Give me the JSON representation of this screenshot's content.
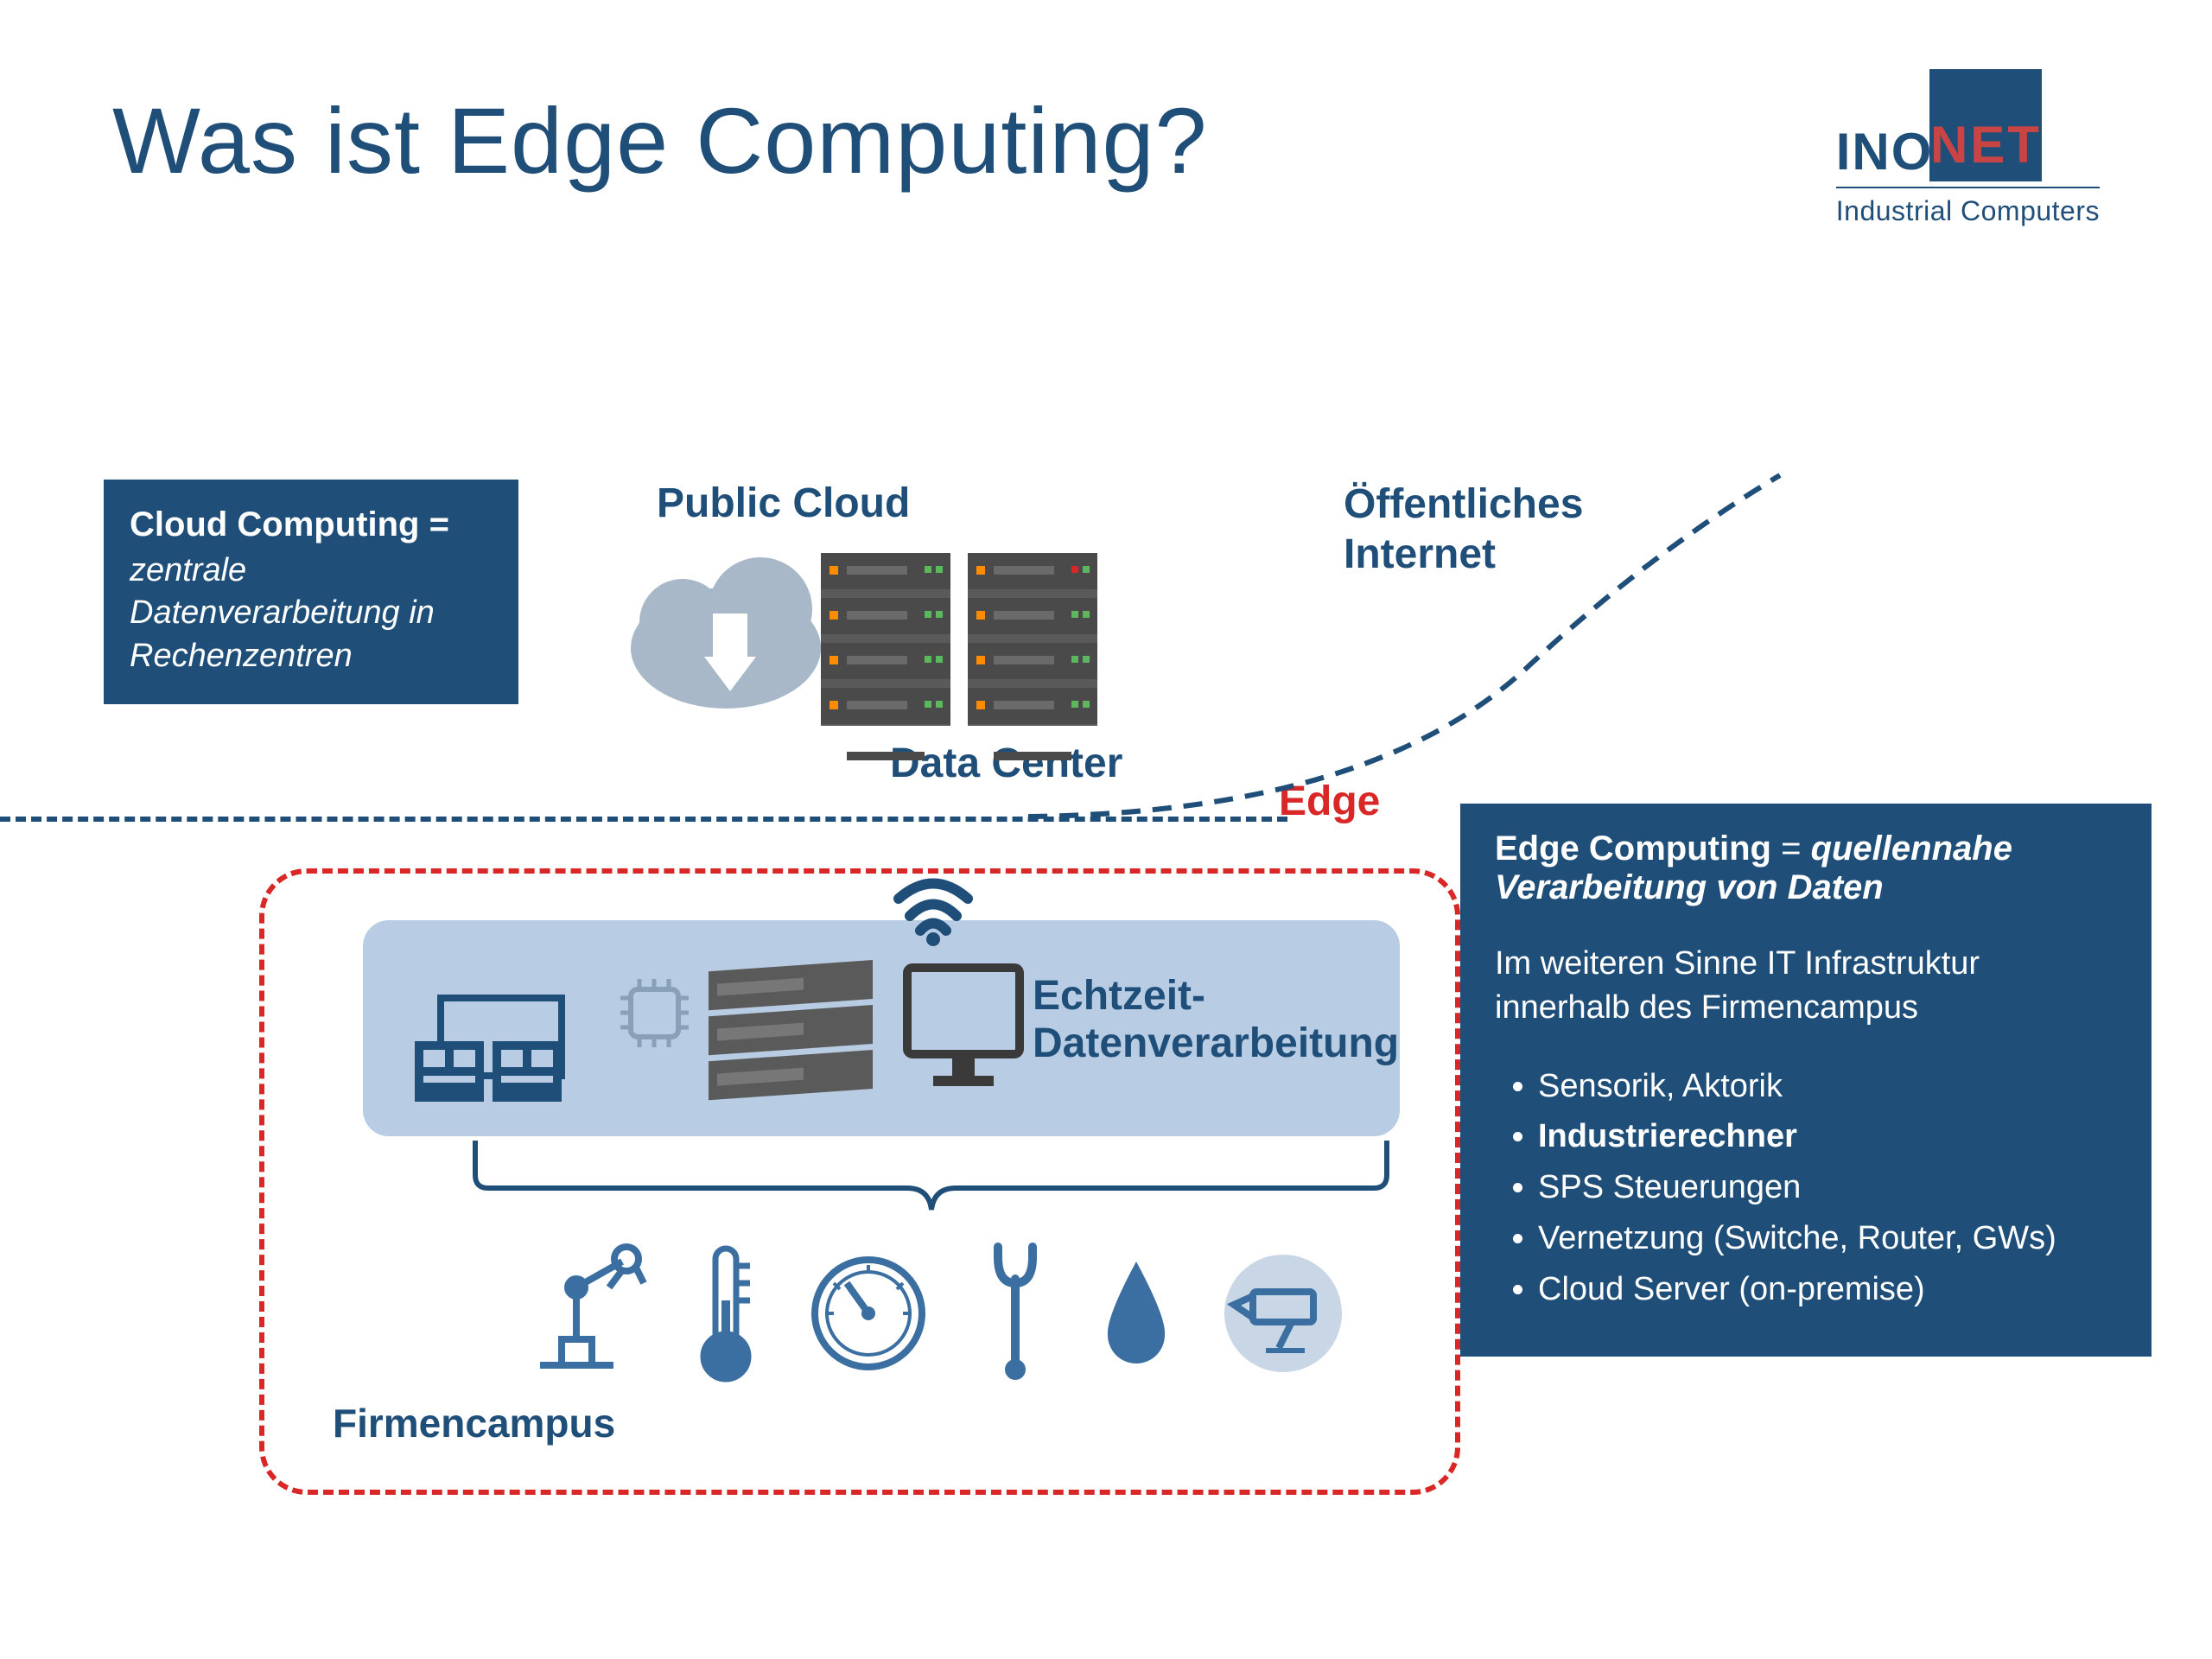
{
  "title": "Was ist Edge Computing?",
  "logo": {
    "ino": "INO",
    "net": "NET",
    "tagline": "Industrial Computers"
  },
  "colors": {
    "primary": "#1f4e79",
    "accent_red": "#d92626",
    "logo_red": "#c94444",
    "band": "#b8cce4",
    "icon_blue": "#3b6fa1",
    "server_gray": "#5a5a5a",
    "server_dark": "#4a4a4a",
    "cloud_gray": "#a9b8c8"
  },
  "cloud_box": {
    "header": "Cloud Computing =",
    "subtitle": "zentrale Datenverarbeitung in Rechenzentren"
  },
  "edge_box": {
    "header_bold": "Edge Computing",
    "header_eq": " = ",
    "header_italic": "quellennahe Verarbeitung von Daten",
    "paragraph": "Im weiteren Sinne IT Infrastruktur innerhalb des Firmencampus",
    "items": [
      {
        "text": "Sensorik, Aktorik",
        "bold": false
      },
      {
        "text": "Industrierechner",
        "bold": true
      },
      {
        "text": "SPS Steuerungen",
        "bold": false
      },
      {
        "text": "Vernetzung (Switche, Router, GWs)",
        "bold": false
      },
      {
        "text": "Cloud Server (on-premise)",
        "bold": false
      }
    ]
  },
  "labels": {
    "public_cloud": "Public Cloud",
    "data_center": "Data Center",
    "internet": "Öffentliches Internet",
    "edge": "Edge",
    "firmencampus": "Firmencampus",
    "echtzeit_l1": "Echtzeit-",
    "echtzeit_l2": "Datenverarbeitung"
  }
}
